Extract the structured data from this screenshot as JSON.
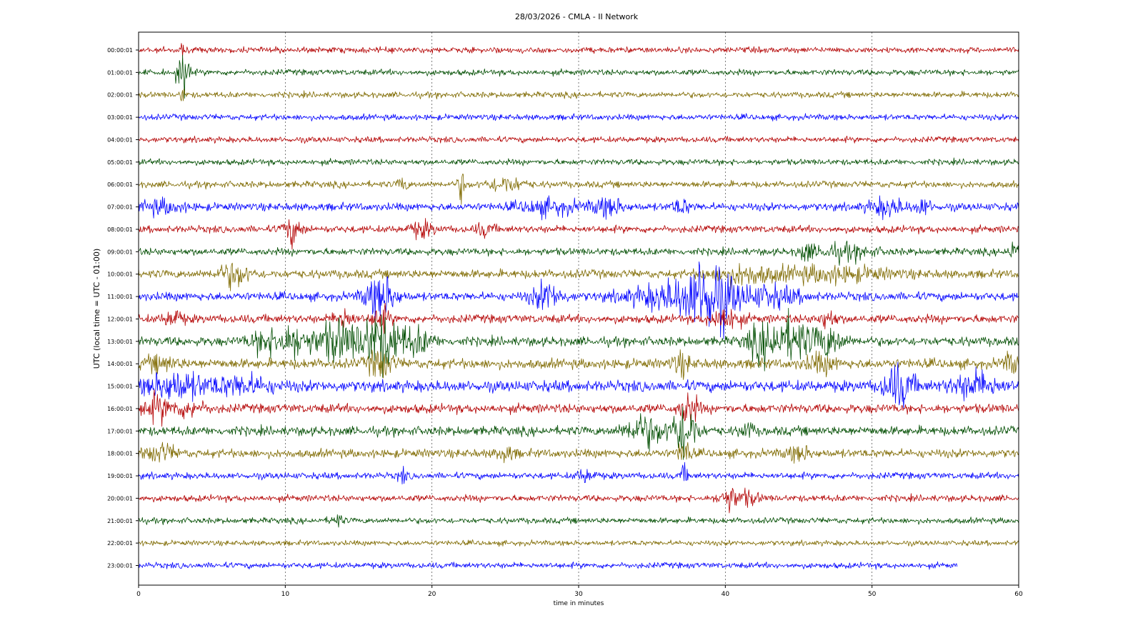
{
  "chart_data": {
    "type": "line",
    "title": "28/03/2026 - CMLA - II Network",
    "xlabel": "time in minutes",
    "ylabel": "UTC (local time = UTC - 01:00)",
    "xlim": [
      0,
      60
    ],
    "x_ticks": [
      0,
      10,
      20,
      30,
      40,
      50,
      60
    ],
    "x_tick_labels": [
      "0",
      "10",
      "20",
      "30",
      "40",
      "50",
      "60"
    ],
    "grid": "vertical dotted lines at every 10 minutes",
    "legend": "none",
    "trace_colors": [
      "#b30000",
      "#004d00",
      "#7f6a00",
      "#0000ff"
    ],
    "series": [
      {
        "name": "00:00:01",
        "color": "#b30000",
        "noise": 0.9,
        "end_minute": 60,
        "events": [
          {
            "t": 3.0,
            "amp": 4.0,
            "width": 0.12
          }
        ]
      },
      {
        "name": "01:00:01",
        "color": "#004d00",
        "noise": 0.9,
        "end_minute": 60,
        "events": [
          {
            "t": 3.0,
            "amp": 9.0,
            "width": 0.35
          }
        ]
      },
      {
        "name": "02:00:01",
        "color": "#7f6a00",
        "noise": 0.9,
        "end_minute": 60,
        "events": [
          {
            "t": 3.0,
            "amp": 4.0,
            "width": 0.12
          }
        ]
      },
      {
        "name": "03:00:01",
        "color": "#0000ff",
        "noise": 0.9,
        "end_minute": 60,
        "events": []
      },
      {
        "name": "04:00:01",
        "color": "#b30000",
        "noise": 0.9,
        "end_minute": 60,
        "events": []
      },
      {
        "name": "05:00:01",
        "color": "#004d00",
        "noise": 0.9,
        "end_minute": 60,
        "events": []
      },
      {
        "name": "06:00:01",
        "color": "#7f6a00",
        "noise": 1.0,
        "end_minute": 60,
        "events": [
          {
            "t": 18.0,
            "amp": 2.5,
            "width": 0.3
          },
          {
            "t": 22.0,
            "amp": 4.5,
            "width": 0.25
          },
          {
            "t": 25.0,
            "amp": 2.2,
            "width": 1.2
          }
        ]
      },
      {
        "name": "07:00:01",
        "color": "#0000ff",
        "noise": 1.2,
        "end_minute": 60,
        "events": [
          {
            "t": 1.5,
            "amp": 1.8,
            "width": 1.5
          },
          {
            "t": 28.0,
            "amp": 2.0,
            "width": 2.0
          },
          {
            "t": 32.0,
            "amp": 2.6,
            "width": 1.0
          },
          {
            "t": 37.0,
            "amp": 2.0,
            "width": 0.6
          },
          {
            "t": 51.0,
            "amp": 2.5,
            "width": 1.2
          },
          {
            "t": 53.5,
            "amp": 2.4,
            "width": 0.5
          }
        ]
      },
      {
        "name": "08:00:01",
        "color": "#b30000",
        "noise": 1.1,
        "end_minute": 60,
        "events": [
          {
            "t": 10.5,
            "amp": 4.0,
            "width": 0.6
          },
          {
            "t": 19.3,
            "amp": 2.2,
            "width": 0.8
          },
          {
            "t": 23.6,
            "amp": 1.8,
            "width": 0.6
          }
        ]
      },
      {
        "name": "09:00:01",
        "color": "#004d00",
        "noise": 1.1,
        "end_minute": 60,
        "events": [
          {
            "t": 45.5,
            "amp": 2.8,
            "width": 0.4
          },
          {
            "t": 48.0,
            "amp": 2.0,
            "width": 2.0
          },
          {
            "t": 59.6,
            "amp": 3.8,
            "width": 0.3
          }
        ]
      },
      {
        "name": "10:00:01",
        "color": "#7f6a00",
        "noise": 1.3,
        "end_minute": 60,
        "events": [
          {
            "t": 6.5,
            "amp": 3.5,
            "width": 1.0
          },
          {
            "t": 41.0,
            "amp": 2.5,
            "width": 2.0
          },
          {
            "t": 47.0,
            "amp": 2.0,
            "width": 4.0
          }
        ]
      },
      {
        "name": "11:00:01",
        "color": "#0000ff",
        "noise": 1.3,
        "end_minute": 60,
        "events": [
          {
            "t": 16.5,
            "amp": 6.5,
            "width": 1.0
          },
          {
            "t": 27.8,
            "amp": 4.0,
            "width": 1.0
          },
          {
            "t": 36.5,
            "amp": 4.0,
            "width": 3.0
          },
          {
            "t": 39.0,
            "amp": 10.0,
            "width": 1.6
          },
          {
            "t": 43.0,
            "amp": 3.0,
            "width": 2.0
          }
        ]
      },
      {
        "name": "12:00:01",
        "color": "#b30000",
        "noise": 1.3,
        "end_minute": 60,
        "events": [
          {
            "t": 2.4,
            "amp": 2.5,
            "width": 0.6
          },
          {
            "t": 14.0,
            "amp": 3.2,
            "width": 0.6
          },
          {
            "t": 16.5,
            "amp": 3.5,
            "width": 0.6
          },
          {
            "t": 40.0,
            "amp": 3.5,
            "width": 1.0
          },
          {
            "t": 47.0,
            "amp": 2.5,
            "width": 0.6
          }
        ]
      },
      {
        "name": "13:00:01",
        "color": "#004d00",
        "noise": 1.4,
        "end_minute": 60,
        "events": [
          {
            "t": 8.5,
            "amp": 3.0,
            "width": 1.0
          },
          {
            "t": 10.5,
            "amp": 4.5,
            "width": 1.2
          },
          {
            "t": 13.5,
            "amp": 6.0,
            "width": 1.4
          },
          {
            "t": 16.5,
            "amp": 9.0,
            "width": 1.4
          },
          {
            "t": 19.0,
            "amp": 3.5,
            "width": 1.0
          },
          {
            "t": 42.5,
            "amp": 5.0,
            "width": 1.0
          },
          {
            "t": 44.5,
            "amp": 6.5,
            "width": 1.3
          },
          {
            "t": 47.0,
            "amp": 4.5,
            "width": 1.0
          }
        ]
      },
      {
        "name": "14:00:01",
        "color": "#7f6a00",
        "noise": 1.5,
        "end_minute": 60,
        "events": [
          {
            "t": 1.5,
            "amp": 2.0,
            "width": 1.0
          },
          {
            "t": 16.5,
            "amp": 4.5,
            "width": 0.8
          },
          {
            "t": 37.0,
            "amp": 3.0,
            "width": 0.6
          },
          {
            "t": 46.5,
            "amp": 2.5,
            "width": 1.0
          },
          {
            "t": 59.5,
            "amp": 2.5,
            "width": 0.6
          }
        ]
      },
      {
        "name": "15:00:01",
        "color": "#0000ff",
        "noise": 1.7,
        "end_minute": 60,
        "events": [
          {
            "t": 2.5,
            "amp": 4.0,
            "width": 2.0
          },
          {
            "t": 7.0,
            "amp": 2.5,
            "width": 2.0
          },
          {
            "t": 51.8,
            "amp": 6.0,
            "width": 1.0
          },
          {
            "t": 57.0,
            "amp": 3.5,
            "width": 1.6
          }
        ]
      },
      {
        "name": "16:00:01",
        "color": "#b30000",
        "noise": 1.4,
        "end_minute": 60,
        "events": [
          {
            "t": 1.3,
            "amp": 3.5,
            "width": 1.0
          },
          {
            "t": 3.5,
            "amp": 2.0,
            "width": 1.0
          },
          {
            "t": 37.5,
            "amp": 5.0,
            "width": 0.6
          }
        ]
      },
      {
        "name": "17:00:01",
        "color": "#004d00",
        "noise": 1.4,
        "end_minute": 60,
        "events": [
          {
            "t": 34.5,
            "amp": 4.5,
            "width": 1.3
          },
          {
            "t": 37.2,
            "amp": 9.0,
            "width": 0.8
          },
          {
            "t": 41.5,
            "amp": 2.5,
            "width": 0.4
          }
        ]
      },
      {
        "name": "18:00:01",
        "color": "#7f6a00",
        "noise": 1.3,
        "end_minute": 60,
        "events": [
          {
            "t": 1.5,
            "amp": 2.5,
            "width": 1.0
          },
          {
            "t": 25.0,
            "amp": 2.0,
            "width": 0.6
          },
          {
            "t": 37.2,
            "amp": 4.0,
            "width": 0.4
          },
          {
            "t": 45.0,
            "amp": 2.0,
            "width": 0.8
          }
        ]
      },
      {
        "name": "19:00:01",
        "color": "#0000ff",
        "noise": 1.0,
        "end_minute": 60,
        "events": [
          {
            "t": 18.0,
            "amp": 2.0,
            "width": 0.3
          },
          {
            "t": 30.5,
            "amp": 1.8,
            "width": 0.6
          },
          {
            "t": 37.2,
            "amp": 2.5,
            "width": 0.3
          }
        ]
      },
      {
        "name": "20:00:01",
        "color": "#b30000",
        "noise": 1.0,
        "end_minute": 60,
        "events": [
          {
            "t": 40.2,
            "amp": 3.5,
            "width": 0.6
          },
          {
            "t": 41.5,
            "amp": 2.0,
            "width": 0.8
          }
        ]
      },
      {
        "name": "21:00:01",
        "color": "#004d00",
        "noise": 0.9,
        "end_minute": 60,
        "events": [
          {
            "t": 13.5,
            "amp": 1.8,
            "width": 0.4
          }
        ]
      },
      {
        "name": "22:00:01",
        "color": "#7f6a00",
        "noise": 0.8,
        "end_minute": 60,
        "events": []
      },
      {
        "name": "23:00:01",
        "color": "#0000ff",
        "noise": 0.9,
        "end_minute": 55.8,
        "events": []
      }
    ]
  }
}
